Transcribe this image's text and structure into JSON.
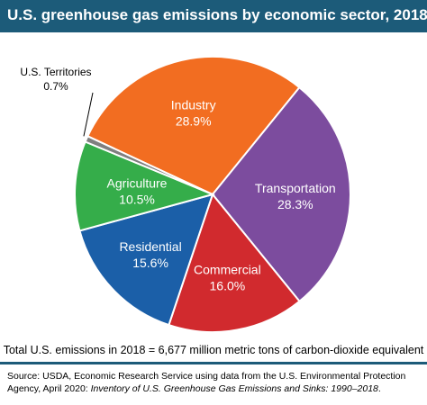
{
  "header": {
    "title": "U.S. greenhouse gas emissions by economic sector, 2018"
  },
  "chart_data": {
    "type": "pie",
    "title": "U.S. greenhouse gas emissions by economic sector, 2018",
    "slices": [
      {
        "name": "Industry",
        "value": 28.9,
        "label": "28.9%",
        "color": "#f26d21"
      },
      {
        "name": "Transportation",
        "value": 28.3,
        "label": "28.3%",
        "color": "#7c4c9e"
      },
      {
        "name": "Commercial",
        "value": 16.0,
        "label": "16.0%",
        "color": "#d12a2e"
      },
      {
        "name": "Residential",
        "value": 15.6,
        "label": "15.6%",
        "color": "#1b5fa8"
      },
      {
        "name": "Agriculture",
        "value": 10.5,
        "label": "10.5%",
        "color": "#35ad4a"
      },
      {
        "name": "U.S. Territories",
        "value": 0.7,
        "label": "0.7%",
        "color": "#7f7f7f"
      }
    ]
  },
  "footer": {
    "total": "Total U.S. emissions in 2018 = 6,677 million metric tons of carbon-dioxide equivalent",
    "source_prefix": "Source: USDA, Economic Research Service using data from the U.S. Environmental Protection Agency, April 2020: ",
    "source_title": "Inventory of U.S. Greenhouse Gas Emissions and Sinks: 1990–2018",
    "source_suffix": "."
  }
}
